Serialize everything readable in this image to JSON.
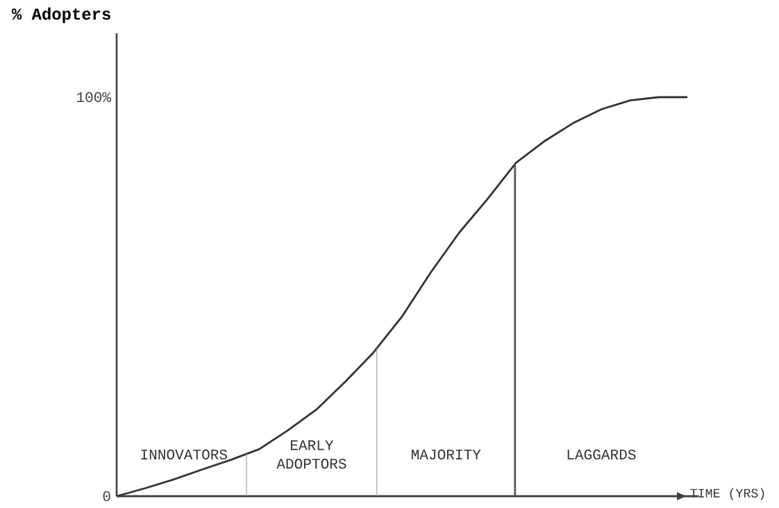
{
  "chart_data": {
    "type": "line",
    "ylabel": "% Adopters",
    "xlabel": "TIME (YRS)",
    "categories": [
      null,
      null,
      null,
      null,
      null,
      null,
      null,
      null,
      null,
      null,
      null,
      null,
      null,
      null,
      null,
      null,
      null,
      null,
      null,
      null,
      null
    ],
    "series": [
      {
        "color": "#333333",
        "values": [
          0,
          2,
          4.2,
          6.7,
          9.1,
          11.8,
          16.5,
          21.7,
          28.6,
          36,
          45,
          56,
          66,
          74.5,
          83.6,
          89,
          93.5,
          97,
          99.2,
          100,
          100
        ]
      }
    ],
    "ylim": [
      0,
      116
    ],
    "yticks": [
      {
        "value": 0,
        "label": "0"
      },
      {
        "value": 100,
        "label": "100%"
      }
    ],
    "tick_labels": "y",
    "marker": "none",
    "line_style": "solid",
    "annotations": [
      "INNOVATORS",
      "EARLY ADOPTORS",
      "MAJORITY",
      "LAGGARDS"
    ]
  }
}
